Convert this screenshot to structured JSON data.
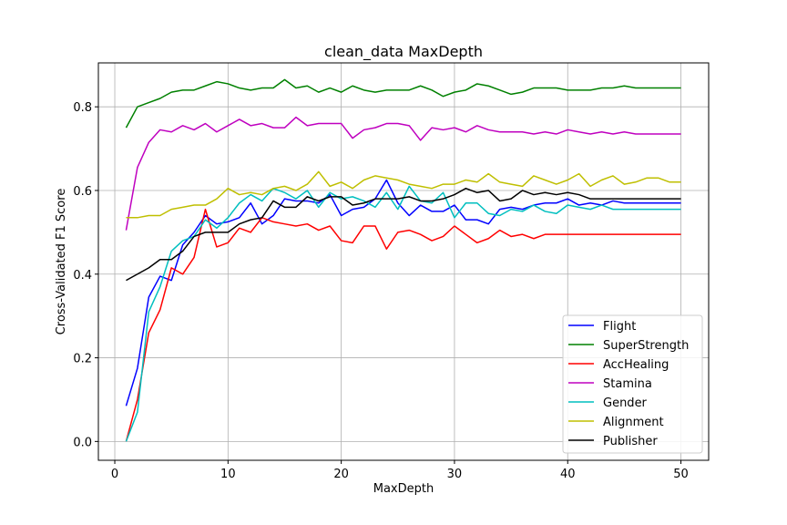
{
  "chart_data": {
    "type": "line",
    "title": "clean_data MaxDepth",
    "xlabel": "MaxDepth",
    "ylabel": "Cross-Validated F1 Score",
    "xlim": [
      -1.45,
      52.45
    ],
    "ylim": [
      -0.045,
      0.905
    ],
    "xticks": [
      0,
      10,
      20,
      30,
      40,
      50
    ],
    "xtick_labels": [
      "0",
      "10",
      "20",
      "30",
      "40",
      "50"
    ],
    "yticks": [
      0.0,
      0.2,
      0.4,
      0.6,
      0.8
    ],
    "ytick_labels": [
      "0.0",
      "0.2",
      "0.4",
      "0.6",
      "0.8"
    ],
    "grid": true,
    "legend_position": "lower-right",
    "x": [
      1,
      2,
      3,
      4,
      5,
      6,
      7,
      8,
      9,
      10,
      11,
      12,
      13,
      14,
      15,
      16,
      17,
      18,
      19,
      20,
      21,
      22,
      23,
      24,
      25,
      26,
      27,
      28,
      29,
      30,
      31,
      32,
      33,
      34,
      35,
      36,
      37,
      38,
      39,
      40,
      41,
      42,
      43,
      44,
      45,
      46,
      47,
      48,
      49,
      50
    ],
    "series": [
      {
        "name": "Flight",
        "color": "#0000ff",
        "values": [
          0.085,
          0.175,
          0.345,
          0.395,
          0.385,
          0.47,
          0.5,
          0.54,
          0.52,
          0.525,
          0.535,
          0.57,
          0.52,
          0.54,
          0.58,
          0.575,
          0.575,
          0.57,
          0.59,
          0.54,
          0.555,
          0.56,
          0.58,
          0.625,
          0.57,
          0.54,
          0.565,
          0.55,
          0.55,
          0.565,
          0.53,
          0.53,
          0.52,
          0.555,
          0.56,
          0.555,
          0.565,
          0.57,
          0.57,
          0.58,
          0.565,
          0.57,
          0.565,
          0.575,
          0.57,
          0.57,
          0.57,
          0.57,
          0.57,
          0.57
        ]
      },
      {
        "name": "SuperStrength",
        "color": "#008000",
        "values": [
          0.75,
          0.8,
          0.81,
          0.82,
          0.835,
          0.84,
          0.84,
          0.85,
          0.86,
          0.855,
          0.845,
          0.84,
          0.845,
          0.845,
          0.865,
          0.845,
          0.85,
          0.835,
          0.845,
          0.835,
          0.85,
          0.84,
          0.835,
          0.84,
          0.84,
          0.84,
          0.85,
          0.84,
          0.825,
          0.835,
          0.84,
          0.855,
          0.85,
          0.84,
          0.83,
          0.835,
          0.845,
          0.845,
          0.845,
          0.84,
          0.84,
          0.84,
          0.845,
          0.845,
          0.85,
          0.845,
          0.845,
          0.845,
          0.845,
          0.845
        ]
      },
      {
        "name": "AccHealing",
        "color": "#ff0000",
        "values": [
          0.0,
          0.1,
          0.26,
          0.315,
          0.415,
          0.4,
          0.44,
          0.555,
          0.465,
          0.475,
          0.51,
          0.5,
          0.535,
          0.525,
          0.52,
          0.515,
          0.52,
          0.505,
          0.515,
          0.48,
          0.475,
          0.515,
          0.515,
          0.46,
          0.5,
          0.505,
          0.495,
          0.48,
          0.49,
          0.515,
          0.495,
          0.475,
          0.485,
          0.505,
          0.49,
          0.495,
          0.485,
          0.495,
          0.495,
          0.495,
          0.495,
          0.495,
          0.495,
          0.495,
          0.495,
          0.495,
          0.495,
          0.495,
          0.495,
          0.495
        ]
      },
      {
        "name": "Stamina",
        "color": "#bf00bf",
        "values": [
          0.505,
          0.655,
          0.715,
          0.745,
          0.74,
          0.755,
          0.745,
          0.76,
          0.74,
          0.755,
          0.77,
          0.755,
          0.76,
          0.75,
          0.75,
          0.775,
          0.755,
          0.76,
          0.76,
          0.76,
          0.725,
          0.745,
          0.75,
          0.76,
          0.76,
          0.755,
          0.72,
          0.75,
          0.745,
          0.75,
          0.74,
          0.755,
          0.745,
          0.74,
          0.74,
          0.74,
          0.735,
          0.74,
          0.735,
          0.745,
          0.74,
          0.735,
          0.74,
          0.735,
          0.74,
          0.735,
          0.735,
          0.735,
          0.735,
          0.735
        ]
      },
      {
        "name": "Gender",
        "color": "#00bfbf",
        "values": [
          0.0,
          0.07,
          0.31,
          0.37,
          0.455,
          0.48,
          0.49,
          0.53,
          0.51,
          0.535,
          0.57,
          0.59,
          0.575,
          0.605,
          0.595,
          0.58,
          0.6,
          0.56,
          0.595,
          0.58,
          0.585,
          0.575,
          0.56,
          0.595,
          0.555,
          0.61,
          0.575,
          0.57,
          0.595,
          0.535,
          0.57,
          0.57,
          0.545,
          0.54,
          0.555,
          0.55,
          0.565,
          0.55,
          0.545,
          0.565,
          0.56,
          0.555,
          0.565,
          0.555,
          0.555,
          0.555,
          0.555,
          0.555,
          0.555,
          0.555
        ]
      },
      {
        "name": "Alignment",
        "color": "#bfbf00",
        "values": [
          0.535,
          0.535,
          0.54,
          0.54,
          0.555,
          0.56,
          0.565,
          0.565,
          0.58,
          0.605,
          0.59,
          0.595,
          0.59,
          0.605,
          0.61,
          0.6,
          0.615,
          0.645,
          0.61,
          0.62,
          0.605,
          0.625,
          0.635,
          0.63,
          0.625,
          0.615,
          0.61,
          0.605,
          0.615,
          0.615,
          0.625,
          0.62,
          0.64,
          0.62,
          0.615,
          0.61,
          0.635,
          0.625,
          0.615,
          0.625,
          0.64,
          0.61,
          0.625,
          0.635,
          0.615,
          0.62,
          0.63,
          0.63,
          0.62,
          0.62
        ]
      },
      {
        "name": "Publisher",
        "color": "#000000",
        "values": [
          0.385,
          0.4,
          0.415,
          0.435,
          0.435,
          0.455,
          0.49,
          0.5,
          0.5,
          0.5,
          0.52,
          0.53,
          0.535,
          0.575,
          0.56,
          0.56,
          0.585,
          0.575,
          0.585,
          0.585,
          0.565,
          0.57,
          0.58,
          0.58,
          0.58,
          0.585,
          0.575,
          0.575,
          0.58,
          0.59,
          0.605,
          0.595,
          0.6,
          0.575,
          0.58,
          0.6,
          0.59,
          0.595,
          0.59,
          0.595,
          0.59,
          0.58,
          0.58,
          0.58,
          0.58,
          0.58,
          0.58,
          0.58,
          0.58,
          0.58
        ]
      }
    ]
  }
}
